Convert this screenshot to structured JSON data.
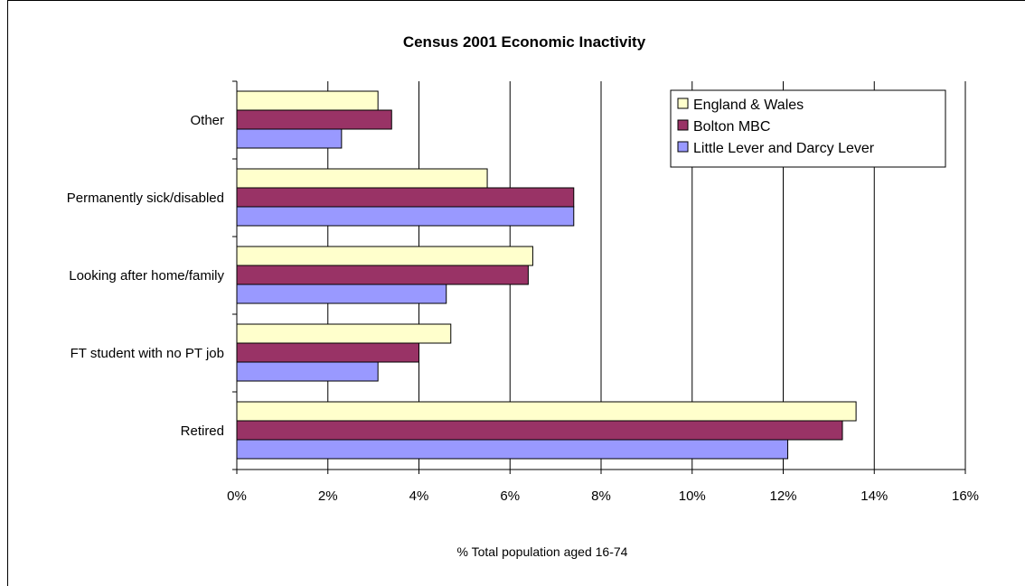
{
  "chart_data": {
    "type": "bar",
    "orientation": "horizontal",
    "title": "Census 2001 Economic Inactivity",
    "xlabel": "% Total population aged 16-74",
    "ylabel": "",
    "categories": [
      "Other",
      "Permanently sick/disabled",
      "Looking after home/family",
      "FT student with no PT job",
      "Retired"
    ],
    "series": [
      {
        "name": "England & Wales",
        "color": "#ffffcc",
        "values": [
          3.1,
          5.5,
          6.5,
          4.7,
          13.6
        ]
      },
      {
        "name": "Bolton MBC",
        "color": "#993366",
        "values": [
          3.4,
          7.4,
          6.4,
          4.0,
          13.3
        ]
      },
      {
        "name": "Little Lever and Darcy Lever",
        "color": "#9999ff",
        "values": [
          2.3,
          7.4,
          4.6,
          3.1,
          12.1
        ]
      }
    ],
    "xlim": [
      0,
      16
    ],
    "xticks": [
      "0%",
      "2%",
      "4%",
      "6%",
      "8%",
      "10%",
      "12%",
      "14%",
      "16%"
    ],
    "grid": true,
    "legend": "top-right"
  }
}
